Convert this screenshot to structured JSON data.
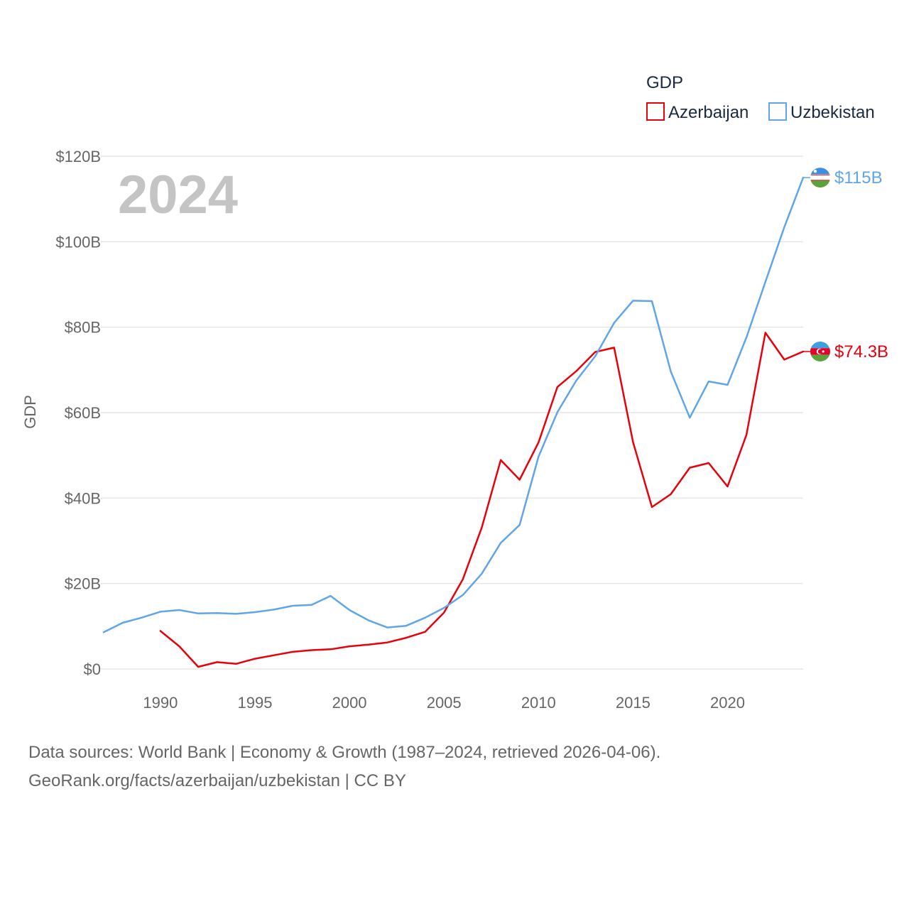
{
  "chart_data": {
    "type": "line",
    "year_label": "2024",
    "ylabel": "GDP",
    "ylim": [
      0,
      120
    ],
    "xlim": [
      1987,
      2024
    ],
    "y_ticks": [
      {
        "value": 0,
        "label": "$0"
      },
      {
        "value": 20,
        "label": "$20B"
      },
      {
        "value": 40,
        "label": "$40B"
      },
      {
        "value": 60,
        "label": "$60B"
      },
      {
        "value": 80,
        "label": "$80B"
      },
      {
        "value": 100,
        "label": "$100B"
      },
      {
        "value": 120,
        "label": "$120B"
      }
    ],
    "x_ticks": [
      1990,
      1995,
      2000,
      2005,
      2010,
      2015,
      2020
    ],
    "legend": {
      "title": "GDP",
      "position": "top-right"
    },
    "series": [
      {
        "name": "Azerbaijan",
        "color": "#e8000b",
        "end_label": "$74.3B",
        "flag": "azerbaijan-flag",
        "x": [
          1990,
          1991,
          1992,
          1993,
          1994,
          1995,
          1996,
          1997,
          1998,
          1999,
          2000,
          2001,
          2002,
          2003,
          2004,
          2005,
          2006,
          2007,
          2008,
          2009,
          2010,
          2011,
          2012,
          2013,
          2014,
          2015,
          2016,
          2017,
          2018,
          2019,
          2020,
          2021,
          2022,
          2023,
          2024
        ],
        "values": [
          8.9,
          5.3,
          0.5,
          1.6,
          1.2,
          2.4,
          3.2,
          4.0,
          4.4,
          4.6,
          5.3,
          5.7,
          6.2,
          7.3,
          8.7,
          13.2,
          21.0,
          33.1,
          48.9,
          44.3,
          53.0,
          66.0,
          69.7,
          74.2,
          75.2,
          53.1,
          37.9,
          40.9,
          47.1,
          48.2,
          42.7,
          54.8,
          78.7,
          72.4,
          74.3
        ]
      },
      {
        "name": "Uzbekistan",
        "color": "#5fa5e8",
        "end_label": "$115B",
        "flag": "uzbekistan-flag",
        "x": [
          1987,
          1988,
          1989,
          1990,
          1991,
          1992,
          1993,
          1994,
          1995,
          1996,
          1997,
          1998,
          1999,
          2000,
          2001,
          2002,
          2003,
          2004,
          2005,
          2006,
          2007,
          2008,
          2009,
          2010,
          2011,
          2012,
          2013,
          2014,
          2015,
          2016,
          2017,
          2018,
          2019,
          2020,
          2021,
          2022,
          2023,
          2024
        ],
        "values": [
          8.6,
          10.8,
          12.0,
          13.4,
          13.8,
          13.0,
          13.1,
          12.9,
          13.3,
          13.9,
          14.8,
          15.0,
          17.1,
          13.8,
          11.4,
          9.7,
          10.1,
          12.0,
          14.3,
          17.3,
          22.3,
          29.5,
          33.7,
          49.7,
          60.1,
          67.5,
          73.2,
          81.0,
          86.2,
          86.1,
          69.6,
          58.8,
          67.3,
          66.5,
          77.6,
          90.6,
          103.4,
          115.0
        ]
      }
    ]
  },
  "footer": {
    "line1": "Data sources: World Bank | Economy & Growth (1987–2024, retrieved 2026-04-06).",
    "line2": "GeoRank.org/facts/azerbaijan/uzbekistan | CC BY"
  }
}
